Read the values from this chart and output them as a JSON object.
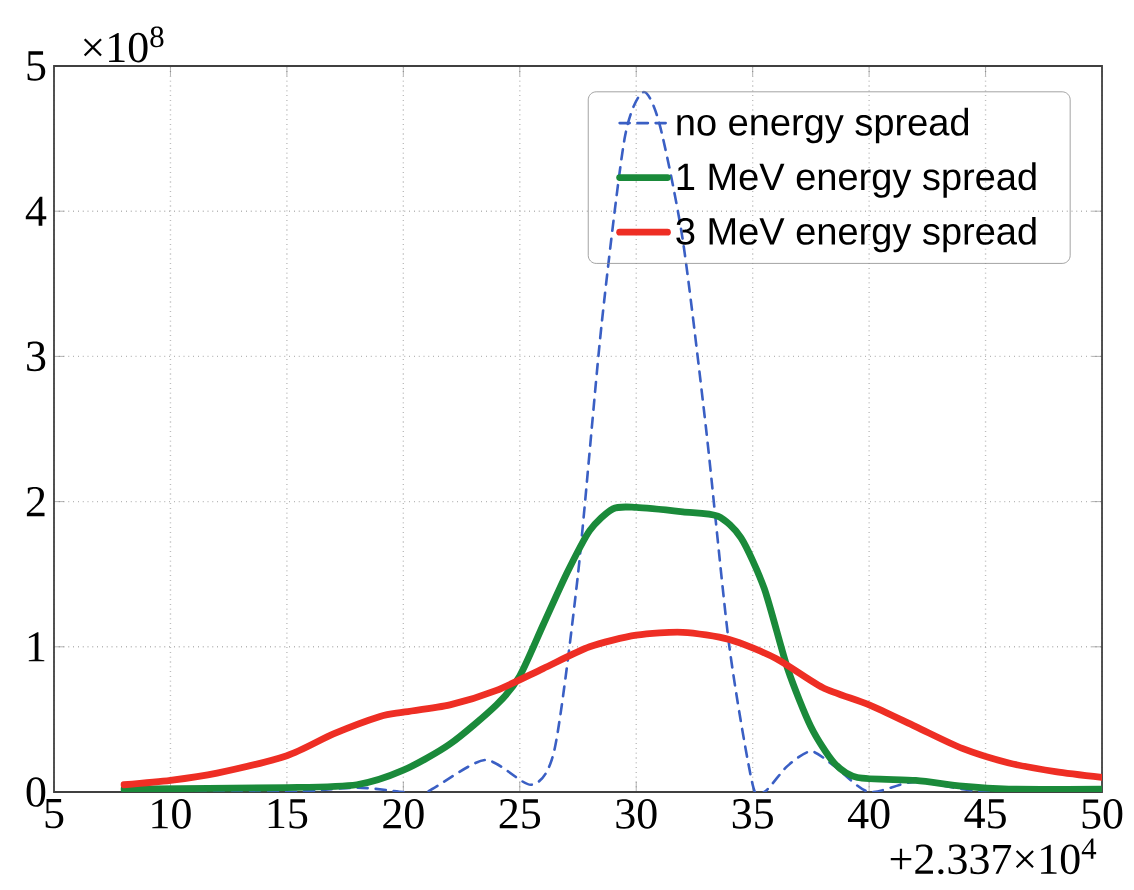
{
  "chart_data": {
    "type": "line",
    "xlim": [
      5,
      50
    ],
    "ylim": [
      0,
      5
    ],
    "xticks": [
      5,
      10,
      15,
      20,
      25,
      30,
      35,
      40,
      45,
      50
    ],
    "yticks": [
      0,
      1,
      2,
      3,
      4,
      5
    ],
    "grid": true,
    "legend": "top right",
    "annotations": [
      "×10$^{8}$",
      "+2.337×10$^{4}$"
    ],
    "series": [
      {
        "name": "no energy spread",
        "color": "#3a5fc4",
        "line_style": "dashed",
        "x": [
          8,
          15,
          18,
          20,
          21,
          23.5,
          25.5,
          26.5,
          27.5,
          28.5,
          29.5,
          30.3,
          31,
          32,
          33,
          34,
          35,
          35.5,
          36.5,
          37.5,
          38.5,
          40,
          42,
          45,
          50
        ],
        "values": [
          0,
          0,
          0.03,
          0,
          0,
          0.22,
          0.05,
          0.3,
          1.5,
          3.2,
          4.5,
          4.82,
          4.6,
          3.8,
          2.5,
          1.0,
          0.05,
          0,
          0.18,
          0.28,
          0.18,
          0,
          0.07,
          0,
          0
        ]
      },
      {
        "name": "1 MeV energy spread",
        "color": "#1a8a3a",
        "line_style": "solid",
        "x": [
          8,
          15,
          18,
          20,
          22,
          24,
          25,
          26,
          27,
          28,
          29,
          30,
          32,
          33.5,
          34.5,
          35.5,
          36.5,
          37.5,
          38.5,
          39.5,
          42,
          44,
          46,
          50
        ],
        "values": [
          0.02,
          0.03,
          0.05,
          0.15,
          0.33,
          0.6,
          0.8,
          1.15,
          1.5,
          1.8,
          1.95,
          1.96,
          1.93,
          1.9,
          1.75,
          1.4,
          0.85,
          0.45,
          0.2,
          0.1,
          0.08,
          0.04,
          0.02,
          0.02
        ]
      },
      {
        "name": "3 MeV energy spread",
        "color": "#ee2e24",
        "line_style": "solid",
        "x": [
          8,
          10,
          12,
          15,
          17,
          19,
          20,
          22,
          24,
          26,
          28,
          30,
          32,
          34,
          36,
          38,
          40,
          42,
          44,
          46,
          48,
          50
        ],
        "values": [
          0.05,
          0.08,
          0.13,
          0.25,
          0.4,
          0.52,
          0.55,
          0.6,
          0.7,
          0.85,
          1.0,
          1.08,
          1.1,
          1.05,
          0.92,
          0.72,
          0.6,
          0.45,
          0.3,
          0.2,
          0.14,
          0.1
        ]
      }
    ]
  }
}
